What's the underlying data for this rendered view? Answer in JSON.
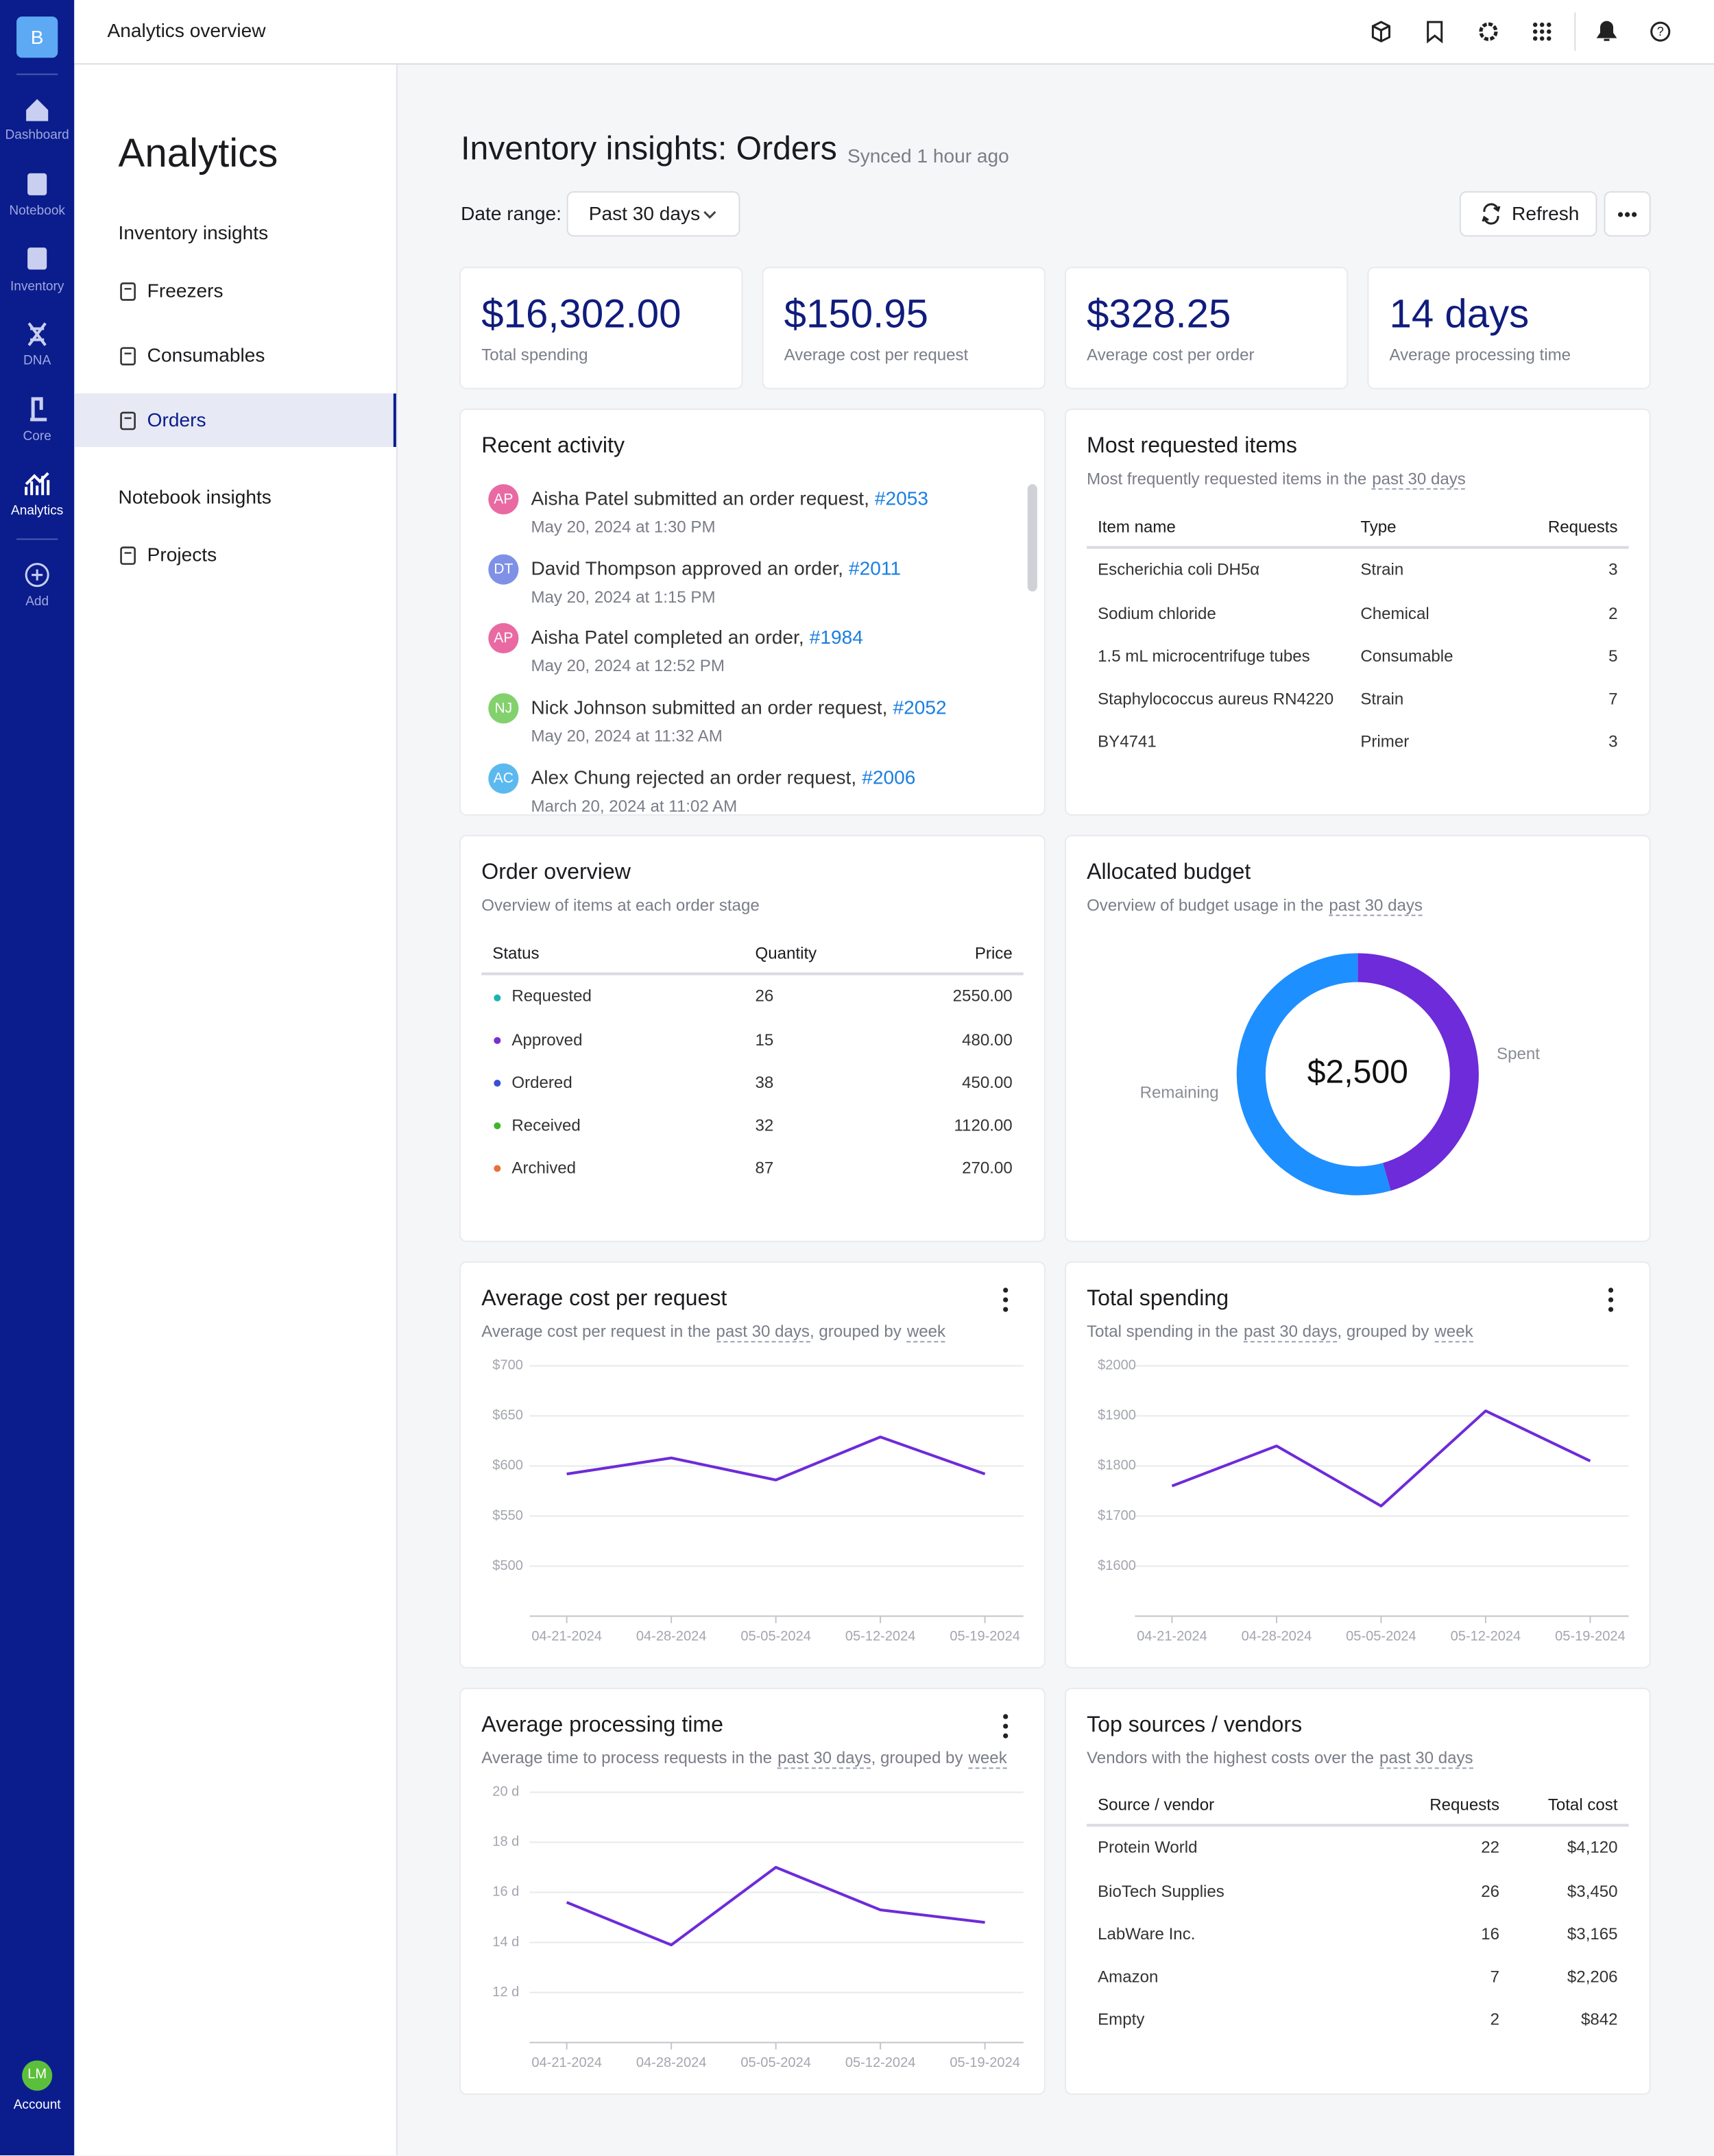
{
  "nav": {
    "logo": "B",
    "items": [
      "Dashboard",
      "Notebook",
      "Inventory",
      "DNA",
      "Core",
      "Analytics",
      "Add"
    ],
    "account_initials": "LM",
    "account_label": "Account"
  },
  "header": {
    "title": "Analytics overview"
  },
  "sidebar": {
    "title": "Analytics",
    "sections": [
      {
        "heading": "Inventory insights",
        "items": [
          {
            "label": "Freezers"
          },
          {
            "label": "Consumables"
          },
          {
            "label": "Orders",
            "selected": true
          }
        ]
      },
      {
        "heading": "Notebook insights",
        "items": [
          {
            "label": "Projects"
          }
        ]
      }
    ]
  },
  "page": {
    "title": "Inventory insights: Orders",
    "sync": "Synced 1 hour ago",
    "date_range_label": "Date range:",
    "date_range": "Past 30 days",
    "refresh": "Refresh"
  },
  "stats": [
    {
      "value": "$16,302.00",
      "label": "Total spending"
    },
    {
      "value": "$150.95",
      "label": "Average cost per request"
    },
    {
      "value": "$328.25",
      "label": "Average cost per order"
    },
    {
      "value": "14 days",
      "label": "Average processing time"
    }
  ],
  "recent_activity": {
    "title": "Recent activity",
    "items": [
      {
        "initials": "AP",
        "avatar_color": "#e96aa3",
        "text": "Aisha Patel submitted an order request,",
        "link": "#2053",
        "time": "May 20, 2024 at 1:30 PM"
      },
      {
        "initials": "DT",
        "avatar_color": "#7f91e6",
        "text": "David Thompson approved an order,",
        "link": "#2011",
        "time": "May 20, 2024 at 1:15 PM"
      },
      {
        "initials": "AP",
        "avatar_color": "#e96aa3",
        "text": "Aisha Patel completed an order,",
        "link": "#1984",
        "time": "May 20, 2024 at 12:52 PM"
      },
      {
        "initials": "NJ",
        "avatar_color": "#82d16c",
        "text": "Nick Johnson submitted an order request,",
        "link": "#2052",
        "time": "May 20, 2024 at 11:32 AM"
      },
      {
        "initials": "AC",
        "avatar_color": "#5cb9ef",
        "text": "Alex Chung rejected an order request,",
        "link": "#2006",
        "time": "March 20, 2024 at 11:02 AM"
      }
    ]
  },
  "most_requested": {
    "title": "Most requested items",
    "subtitle": [
      "Most frequently requested items in the",
      "past 30 days"
    ],
    "columns": [
      "Item name",
      "Type",
      "Requests"
    ],
    "rows": [
      [
        "Escherichia coli DH5α",
        "Strain",
        3
      ],
      [
        "Sodium chloride",
        "Chemical",
        2
      ],
      [
        "1.5 mL microcentrifuge tubes",
        "Consumable",
        5
      ],
      [
        "Staphylococcus aureus RN4220",
        "Strain",
        7
      ],
      [
        "BY4741",
        "Primer",
        3
      ]
    ]
  },
  "order_overview": {
    "title": "Order overview",
    "subtitle": [
      "Overview of items at each order stage"
    ],
    "columns": [
      "Status",
      "Quantity",
      "Price"
    ],
    "rows": [
      {
        "status": "Requested",
        "color": "#19b5ad",
        "quantity": 26,
        "price": "2550.00"
      },
      {
        "status": "Approved",
        "color": "#7a2fd4",
        "quantity": 15,
        "price": "480.00"
      },
      {
        "status": "Ordered",
        "color": "#3a4fd6",
        "quantity": 38,
        "price": "450.00"
      },
      {
        "status": "Received",
        "color": "#40b52b",
        "quantity": 32,
        "price": "1120.00"
      },
      {
        "status": "Archived",
        "color": "#e8703a",
        "quantity": 87,
        "price": "270.00"
      }
    ]
  },
  "top_vendors": {
    "title": "Top sources / vendors",
    "subtitle": [
      "Vendors with the highest costs over the",
      "past 30 days"
    ],
    "columns": [
      "Source / vendor",
      "Requests",
      "Total cost"
    ],
    "rows": [
      [
        "Protein World",
        22,
        "$4,120"
      ],
      [
        "BioTech Supplies",
        26,
        "$3,450"
      ],
      [
        "LabWare Inc.",
        16,
        "$3,165"
      ],
      [
        "Amazon",
        7,
        "$2,206"
      ],
      [
        "Empty",
        2,
        "$842"
      ]
    ]
  },
  "chart_data": [
    {
      "type": "donut",
      "title": "Allocated budget",
      "subtitle": [
        "Overview of budget usage in the",
        "past 30 days"
      ],
      "center_label": "$2,500",
      "categories": [
        "Spent",
        "Remaining"
      ],
      "values": [
        1140,
        1360
      ],
      "colors": [
        "#6d2bd9",
        "#1e8fff"
      ]
    },
    {
      "type": "line",
      "title": "Average cost per request",
      "subtitle": [
        "Average cost per request in the",
        "past 30 days",
        ", grouped by",
        "week"
      ],
      "categories": [
        "04-21-2024",
        "04-28-2024",
        "05-05-2024",
        "05-12-2024",
        "05-19-2024"
      ],
      "values": [
        592,
        608,
        586,
        629,
        592
      ],
      "color": "#6d2bd9",
      "ylim": [
        450,
        700
      ],
      "yticks": [
        {
          "value": 500,
          "label": "$500"
        },
        {
          "value": 550,
          "label": "$550"
        },
        {
          "value": 600,
          "label": "$600"
        },
        {
          "value": 650,
          "label": "$650"
        },
        {
          "value": 700,
          "label": "$700"
        }
      ],
      "grid": true
    },
    {
      "type": "line",
      "title": "Total spending",
      "subtitle": [
        "Total spending in the",
        "past 30 days",
        ", grouped by",
        "week"
      ],
      "categories": [
        "04-21-2024",
        "04-28-2024",
        "05-05-2024",
        "05-12-2024",
        "05-19-2024"
      ],
      "values": [
        1760,
        1840,
        1720,
        1910,
        1810
      ],
      "color": "#6d2bd9",
      "ylim": [
        1500,
        2000
      ],
      "yticks": [
        {
          "value": 1600,
          "label": "$1600"
        },
        {
          "value": 1700,
          "label": "$1700"
        },
        {
          "value": 1800,
          "label": "$1800"
        },
        {
          "value": 1900,
          "label": "$1900"
        },
        {
          "value": 2000,
          "label": "$2000"
        }
      ],
      "grid": true
    },
    {
      "type": "line",
      "title": "Average processing time",
      "subtitle": [
        "Average time to process requests in the",
        "past 30 days",
        ", grouped by",
        "week"
      ],
      "categories": [
        "04-21-2024",
        "04-28-2024",
        "05-05-2024",
        "05-12-2024",
        "05-19-2024"
      ],
      "values": [
        15.6,
        13.9,
        17.0,
        15.3,
        14.8
      ],
      "color": "#6d2bd9",
      "ylim": [
        10,
        20
      ],
      "yticks": [
        {
          "value": 12,
          "label": "12 d"
        },
        {
          "value": 14,
          "label": "14 d"
        },
        {
          "value": 16,
          "label": "16 d"
        },
        {
          "value": 18,
          "label": "18 d"
        },
        {
          "value": 20,
          "label": "20 d"
        }
      ],
      "grid": true
    }
  ]
}
